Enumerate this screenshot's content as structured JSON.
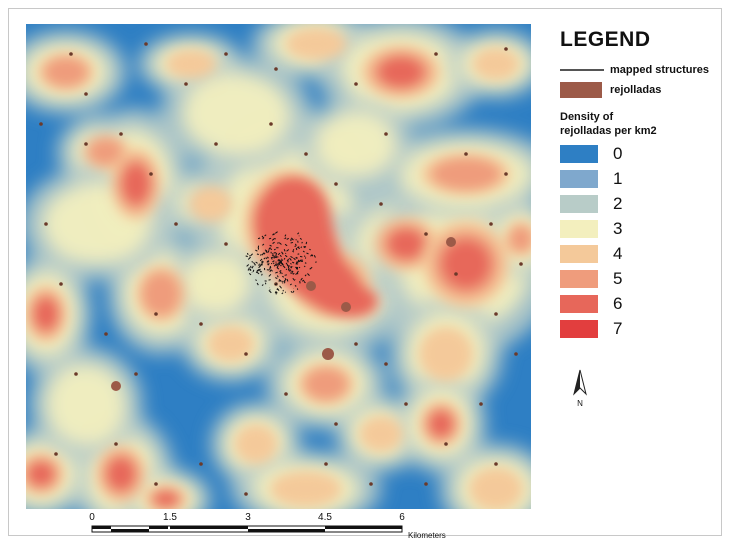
{
  "legend": {
    "title": "LEGEND",
    "mapped_structures_label": "mapped structures",
    "rejolladas_label": "rejolladas",
    "rejolladas_color": "#9c5a48",
    "density_title_line1": "Density of",
    "density_title_line2": "rejolladas per km2",
    "classes": [
      {
        "label": "0",
        "color": "#2e7fc4"
      },
      {
        "label": "1",
        "color": "#7fa8cd"
      },
      {
        "label": "2",
        "color": "#b8ccc8"
      },
      {
        "label": "3",
        "color": "#f3efbe"
      },
      {
        "label": "4",
        "color": "#f4c99a"
      },
      {
        "label": "5",
        "color": "#ef9c7c"
      },
      {
        "label": "6",
        "color": "#e7675a"
      },
      {
        "label": "7",
        "color": "#e23e3e"
      }
    ]
  },
  "north_label": "N",
  "scale": {
    "ticks": [
      "0",
      "1.5",
      "3",
      "4.5",
      "6"
    ],
    "units": "Kilometers"
  }
}
